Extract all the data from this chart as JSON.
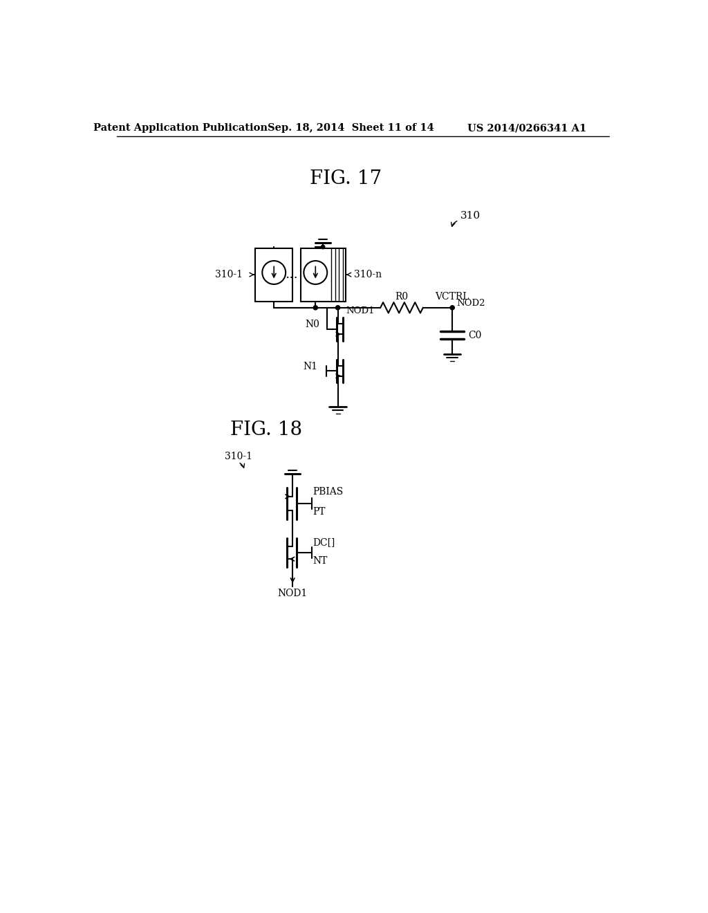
{
  "header_left": "Patent Application Publication",
  "header_mid": "Sep. 18, 2014  Sheet 11 of 14",
  "header_right": "US 2014/0266341 A1",
  "fig17_title": "FIG. 17",
  "fig18_title": "FIG. 18",
  "bg_color": "#ffffff",
  "line_color": "#000000"
}
